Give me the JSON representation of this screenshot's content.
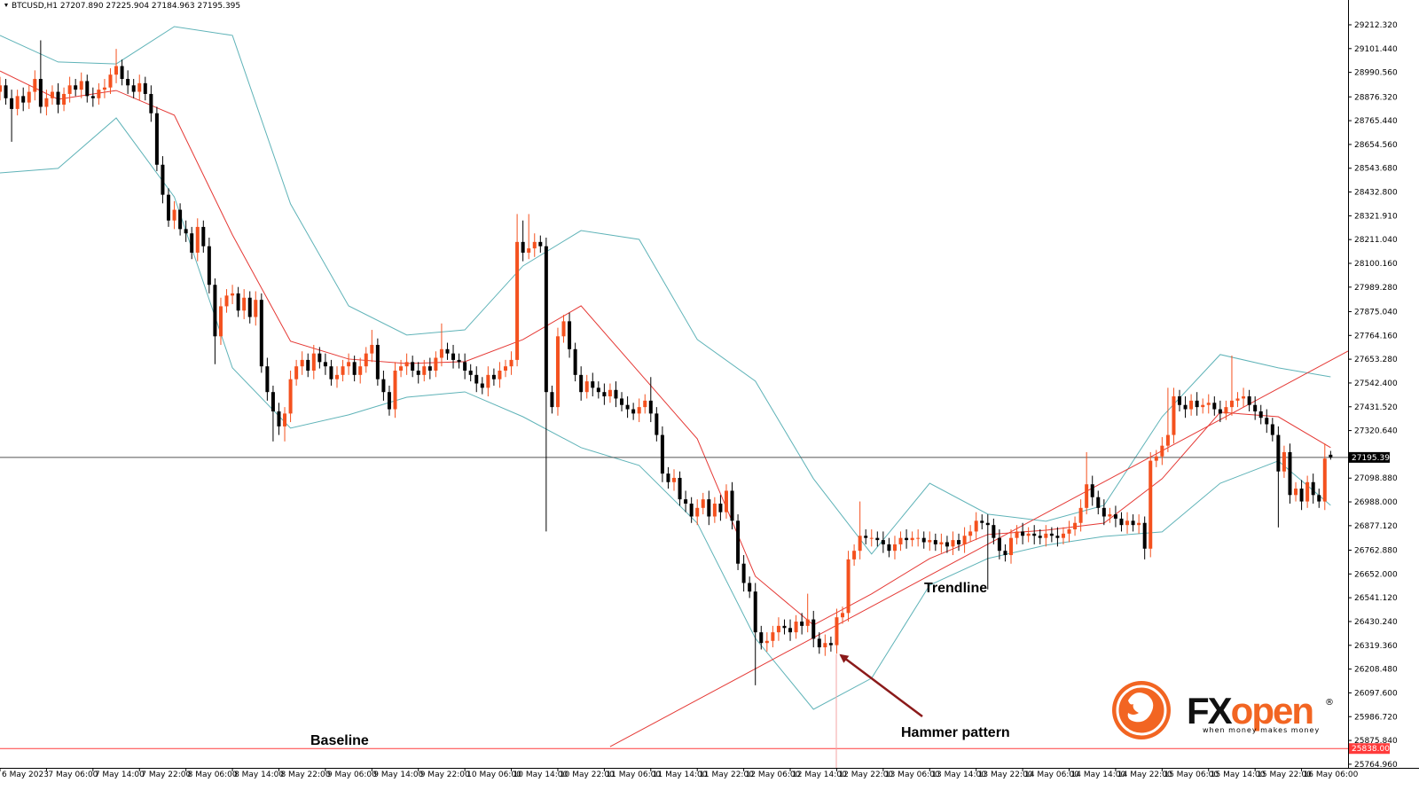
{
  "chart_data": {
    "type": "candlestick",
    "header": "BTCUSD,H1  27207.890 27225.904 27184.963 27195.395",
    "up_color": "#f4511e",
    "down_color": "#000000",
    "xlim": [
      0,
      232
    ],
    "xticks": [
      {
        "value": 0,
        "label": "6 May 2023"
      },
      {
        "value": 8,
        "label": "7 May 06:00"
      },
      {
        "value": 16,
        "label": "7 May 14:00"
      },
      {
        "value": 24,
        "label": "7 May 22:00"
      },
      {
        "value": 32,
        "label": "8 May 06:00"
      },
      {
        "value": 40,
        "label": "8 May 14:00"
      },
      {
        "value": 48,
        "label": "8 May 22:00"
      },
      {
        "value": 56,
        "label": "9 May 06:00"
      },
      {
        "value": 64,
        "label": "9 May 14:00"
      },
      {
        "value": 72,
        "label": "9 May 22:00"
      },
      {
        "value": 80,
        "label": "10 May 06:00"
      },
      {
        "value": 88,
        "label": "10 May 14:00"
      },
      {
        "value": 96,
        "label": "10 May 22:00"
      },
      {
        "value": 104,
        "label": "11 May 06:00"
      },
      {
        "value": 112,
        "label": "11 May 14:00"
      },
      {
        "value": 120,
        "label": "11 May 22:00"
      },
      {
        "value": 128,
        "label": "12 May 06:00"
      },
      {
        "value": 136,
        "label": "12 May 14:00"
      },
      {
        "value": 144,
        "label": "12 May 22:00"
      },
      {
        "value": 152,
        "label": "13 May 06:00"
      },
      {
        "value": 160,
        "label": "13 May 14:00"
      },
      {
        "value": 168,
        "label": "13 May 22:00"
      },
      {
        "value": 176,
        "label": "14 May 06:00"
      },
      {
        "value": 184,
        "label": "14 May 14:00"
      },
      {
        "value": 192,
        "label": "14 May 22:00"
      },
      {
        "value": 200,
        "label": "15 May 06:00"
      },
      {
        "value": 208,
        "label": "15 May 14:00"
      },
      {
        "value": 216,
        "label": "15 May 22:00"
      },
      {
        "value": 224,
        "label": "16 May 06:00"
      }
    ],
    "ylim": [
      25748,
      29328
    ],
    "yticks": [
      {
        "value": 29212.32,
        "label": "29212.320"
      },
      {
        "value": 29101.44,
        "label": "29101.440"
      },
      {
        "value": 28990.56,
        "label": "28990.560"
      },
      {
        "value": 28876.32,
        "label": "28876.320"
      },
      {
        "value": 28765.44,
        "label": "28765.440"
      },
      {
        "value": 28654.56,
        "label": "28654.560"
      },
      {
        "value": 28543.68,
        "label": "28543.680"
      },
      {
        "value": 28432.8,
        "label": "28432.800"
      },
      {
        "value": 28321.91,
        "label": "28321.910"
      },
      {
        "value": 28211.04,
        "label": "28211.040"
      },
      {
        "value": 28100.16,
        "label": "28100.160"
      },
      {
        "value": 27989.28,
        "label": "27989.280"
      },
      {
        "value": 27875.04,
        "label": "27875.040"
      },
      {
        "value": 27764.16,
        "label": "27764.160"
      },
      {
        "value": 27653.28,
        "label": "27653.280"
      },
      {
        "value": 27542.4,
        "label": "27542.400"
      },
      {
        "value": 27431.52,
        "label": "27431.520"
      },
      {
        "value": 27320.64,
        "label": "27320.640"
      },
      {
        "value": 27098.88,
        "label": "27098.880"
      },
      {
        "value": 26988,
        "label": "26988.000"
      },
      {
        "value": 26877.12,
        "label": "26877.120"
      },
      {
        "value": 26762.88,
        "label": "26762.880"
      },
      {
        "value": 26652,
        "label": "26652.000"
      },
      {
        "value": 26541.12,
        "label": "26541.120"
      },
      {
        "value": 26430.24,
        "label": "26430.240"
      },
      {
        "value": 26319.36,
        "label": "26319.360"
      },
      {
        "value": 26208.48,
        "label": "26208.480"
      },
      {
        "value": 26097.6,
        "label": "26097.600"
      },
      {
        "value": 25986.72,
        "label": "25986.720"
      },
      {
        "value": 25875.84,
        "label": "25875.840"
      },
      {
        "value": 25764.96,
        "label": "25764.960"
      }
    ],
    "open": [
      28900,
      28930,
      28870,
      28820,
      28880,
      28850,
      28900,
      28960,
      28830,
      28870,
      28900,
      28840,
      28890,
      28930,
      28910,
      28950,
      28880,
      28870,
      28910,
      28920,
      28980,
      29020,
      28960,
      28930,
      28900,
      28940,
      28890,
      28800,
      28560,
      28420,
      28300,
      28350,
      28260,
      28240,
      28150,
      28270,
      28180,
      28000,
      27760,
      27900,
      27950,
      27960,
      27880,
      27940,
      27850,
      27930,
      27620,
      27500,
      27410,
      27340,
      27400,
      27560,
      27620,
      27650,
      27600,
      27680,
      27640,
      27620,
      27560,
      27580,
      27620,
      27640,
      27580,
      27620,
      27680,
      27720,
      27560,
      27500,
      27420,
      27600,
      27620,
      27640,
      27600,
      27580,
      27620,
      27600,
      27660,
      27700,
      27680,
      27650,
      27640,
      27600,
      27580,
      27540,
      27520,
      27580,
      27560,
      27600,
      27620,
      27650,
      28200,
      28150,
      28170,
      28200,
      28180,
      27500,
      27430,
      27760,
      27830,
      27700,
      27580,
      27500,
      27550,
      27520,
      27500,
      27480,
      27510,
      27470,
      27440,
      27420,
      27400,
      27430,
      27460,
      27400,
      27300,
      27120,
      27080,
      27100,
      27000,
      26980,
      26920,
      26960,
      27000,
      26920,
      26980,
      26940,
      27040,
      26900,
      26700,
      26610,
      26570,
      26380,
      26330,
      26340,
      26380,
      26410,
      26400,
      26380,
      26430,
      26410,
      26440,
      26350,
      26310,
      26330,
      26320,
      26450,
      26470,
      26720,
      26760,
      26830,
      26820,
      26820,
      26810,
      26790,
      26760,
      26790,
      26820,
      26810,
      26820,
      26820,
      26800,
      26810,
      26790,
      26800,
      26780,
      26810,
      26790,
      26830,
      26850,
      26900,
      26890,
      26880,
      26820,
      26760,
      26740,
      26820,
      26850,
      26830,
      26840,
      26830,
      26820,
      26840,
      26830,
      26820,
      26840,
      26860,
      26890,
      26960,
      27070,
      27010,
      26960,
      26920,
      26930,
      26910,
      26880,
      26900,
      26880,
      26890,
      26770,
      27180,
      27200,
      27250,
      27300,
      27480,
      27440,
      27420,
      27460,
      27430,
      27440,
      27450,
      27420,
      27400,
      27430,
      27460,
      27470,
      27480,
      27440,
      27410,
      27380,
      27350,
      27300,
      27130,
      27220,
      27020,
      27050,
      26990,
      27080,
      27020,
      26990,
      27207.89
    ],
    "high": [
      28970,
      28960,
      28910,
      28910,
      28920,
      28930,
      29000,
      29140,
      28910,
      28930,
      28940,
      28920,
      28970,
      28960,
      28990,
      28980,
      28920,
      28940,
      28960,
      29010,
      29100,
      29050,
      29000,
      28960,
      28980,
      28970,
      28930,
      28830,
      28600,
      28450,
      28390,
      28380,
      28300,
      28270,
      28310,
      28300,
      28220,
      28030,
      27940,
      27980,
      28000,
      27990,
      27980,
      27970,
      27970,
      27960,
      27660,
      27530,
      27450,
      27430,
      27600,
      27650,
      27690,
      27680,
      27720,
      27710,
      27680,
      27650,
      27620,
      27650,
      27680,
      27670,
      27660,
      27710,
      27790,
      27750,
      27600,
      27530,
      27640,
      27650,
      27680,
      27670,
      27640,
      27650,
      27660,
      27690,
      27820,
      27730,
      27720,
      27680,
      27680,
      27630,
      27620,
      27570,
      27620,
      27610,
      27640,
      27650,
      27690,
      28330,
      28300,
      28330,
      28240,
      28230,
      28220,
      27530,
      27800,
      27860,
      27870,
      27730,
      27620,
      27580,
      27590,
      27550,
      27540,
      27540,
      27550,
      27500,
      27480,
      27450,
      27470,
      27490,
      27570,
      27430,
      27340,
      27150,
      27140,
      27130,
      27040,
      27010,
      27000,
      27030,
      27040,
      27010,
      27020,
      27070,
      27080,
      26930,
      26740,
      26640,
      26610,
      26410,
      26380,
      26410,
      26450,
      26440,
      26440,
      26460,
      26470,
      26560,
      26480,
      26380,
      26370,
      26360,
      26490,
      26500,
      26760,
      26790,
      26990,
      26860,
      26860,
      26850,
      26850,
      26820,
      26830,
      26850,
      26860,
      26850,
      26860,
      26850,
      26850,
      26840,
      26840,
      26830,
      26850,
      26840,
      26870,
      26880,
      26940,
      26930,
      26930,
      26910,
      26860,
      26790,
      26860,
      26880,
      26890,
      26870,
      26880,
      26860,
      26880,
      26870,
      26870,
      26870,
      26900,
      26920,
      27000,
      27220,
      27110,
      27040,
      27000,
      26960,
      26970,
      26940,
      26940,
      26930,
      26930,
      26920,
      27220,
      27230,
      27290,
      27520,
      27520,
      27510,
      27480,
      27490,
      27500,
      27470,
      27490,
      27480,
      27460,
      27460,
      27670,
      27500,
      27520,
      27510,
      27480,
      27440,
      27420,
      27380,
      27340,
      27250,
      27260,
      27080,
      27090,
      27110,
      27120,
      27050,
      27260,
      27225.904
    ],
    "low": [
      28860,
      28840,
      28667,
      28790,
      28810,
      28820,
      28860,
      28800,
      28790,
      28840,
      28800,
      28810,
      28850,
      28880,
      28870,
      28850,
      28830,
      28840,
      28870,
      28890,
      28940,
      28930,
      28890,
      28870,
      28860,
      28860,
      28760,
      28530,
      28380,
      28270,
      28260,
      28230,
      28200,
      28120,
      28110,
      28150,
      27960,
      27630,
      27720,
      27870,
      27910,
      27850,
      27840,
      27820,
      27810,
      27590,
      27460,
      27270,
      27300,
      27270,
      27360,
      27530,
      27580,
      27570,
      27560,
      27610,
      27580,
      27530,
      27520,
      27550,
      27580,
      27550,
      27540,
      27590,
      27640,
      27530,
      27460,
      27390,
      27380,
      27570,
      27580,
      27570,
      27540,
      27550,
      27560,
      27570,
      27620,
      27650,
      27610,
      27610,
      27560,
      27550,
      27500,
      27490,
      27480,
      27530,
      27520,
      27570,
      27580,
      27620,
      28110,
      28120,
      28130,
      28150,
      26850,
      27400,
      27390,
      27730,
      27660,
      27550,
      27460,
      27470,
      27480,
      27470,
      27440,
      27450,
      27430,
      27410,
      27380,
      27370,
      27360,
      27400,
      27360,
      27270,
      27080,
      27050,
      27040,
      26970,
      26940,
      26890,
      26880,
      26930,
      26880,
      26890,
      26900,
      26910,
      26860,
      26670,
      26570,
      26540,
      26133,
      26300,
      26290,
      26310,
      26340,
      26370,
      26340,
      26350,
      26370,
      26380,
      26310,
      26280,
      26270,
      26290,
      26280,
      26420,
      26430,
      26690,
      26720,
      26790,
      26780,
      26780,
      26750,
      26730,
      26720,
      26760,
      26770,
      26780,
      26780,
      26770,
      26760,
      26760,
      26750,
      26750,
      26740,
      26760,
      26750,
      26800,
      26810,
      26860,
      26580,
      26790,
      26720,
      26710,
      26700,
      26790,
      26790,
      26800,
      26790,
      26790,
      26780,
      26800,
      26780,
      26790,
      26800,
      26830,
      26850,
      26930,
      26970,
      26930,
      26880,
      26890,
      26870,
      26850,
      26840,
      26850,
      26840,
      26720,
      26730,
      27150,
      27160,
      27220,
      27260,
      27410,
      27380,
      27390,
      27390,
      27400,
      27400,
      27390,
      27360,
      27370,
      27390,
      27430,
      27430,
      27410,
      27370,
      27350,
      27310,
      27270,
      26869,
      27100,
      26980,
      26990,
      26950,
      26960,
      26980,
      26960,
      26950,
      27184.963
    ],
    "close": [
      28930,
      28870,
      28820,
      28880,
      28850,
      28900,
      28960,
      28830,
      28870,
      28900,
      28840,
      28890,
      28930,
      28910,
      28950,
      28880,
      28870,
      28910,
      28920,
      28980,
      29020,
      28960,
      28930,
      28900,
      28940,
      28890,
      28800,
      28560,
      28420,
      28300,
      28350,
      28260,
      28240,
      28150,
      28270,
      28180,
      28000,
      27760,
      27900,
      27950,
      27960,
      27880,
      27940,
      27850,
      27930,
      27620,
      27500,
      27410,
      27340,
      27400,
      27560,
      27620,
      27650,
      27600,
      27680,
      27640,
      27620,
      27560,
      27580,
      27620,
      27640,
      27580,
      27620,
      27680,
      27720,
      27560,
      27500,
      27420,
      27600,
      27620,
      27640,
      27600,
      27580,
      27620,
      27600,
      27660,
      27700,
      27680,
      27650,
      27640,
      27600,
      27580,
      27540,
      27520,
      27580,
      27560,
      27600,
      27620,
      27650,
      28200,
      28150,
      28170,
      28200,
      28180,
      27500,
      27430,
      27760,
      27830,
      27700,
      27580,
      27500,
      27550,
      27520,
      27500,
      27480,
      27510,
      27470,
      27440,
      27420,
      27400,
      27430,
      27460,
      27400,
      27300,
      27120,
      27080,
      27100,
      27000,
      26980,
      26920,
      26960,
      27000,
      26920,
      26980,
      26940,
      27040,
      26900,
      26700,
      26610,
      26570,
      26380,
      26330,
      26340,
      26380,
      26410,
      26400,
      26380,
      26430,
      26410,
      26440,
      26350,
      26310,
      26330,
      26320,
      26450,
      26470,
      26720,
      26760,
      26830,
      26820,
      26820,
      26810,
      26790,
      26760,
      26790,
      26820,
      26810,
      26820,
      26820,
      26800,
      26810,
      26790,
      26800,
      26780,
      26810,
      26790,
      26830,
      26850,
      26900,
      26890,
      26880,
      26820,
      26760,
      26740,
      26820,
      26850,
      26830,
      26840,
      26830,
      26820,
      26840,
      26830,
      26820,
      26840,
      26860,
      26890,
      26960,
      27070,
      27010,
      26960,
      26920,
      26930,
      26910,
      26880,
      26900,
      26880,
      26890,
      26770,
      27180,
      27200,
      27250,
      27300,
      27480,
      27440,
      27420,
      27460,
      27430,
      27440,
      27450,
      27420,
      27400,
      27430,
      27460,
      27470,
      27480,
      27440,
      27410,
      27380,
      27350,
      27300,
      27130,
      27220,
      27020,
      27050,
      26990,
      27080,
      27020,
      26990,
      27190,
      27195.395
    ],
    "bands": {
      "x": [
        0,
        10,
        20,
        30,
        40,
        50,
        60,
        70,
        80,
        90,
        100,
        110,
        120,
        130,
        140,
        150,
        160,
        170,
        180,
        190,
        200,
        210,
        220,
        229
      ],
      "series": [
        {
          "color": "#5fb3b8",
          "values": [
            29163,
            29039,
            29030,
            29204,
            29163,
            28377,
            27902,
            27766,
            27790,
            28088,
            28253,
            28212,
            27745,
            27551,
            27096,
            26745,
            27075,
            26931,
            26898,
            26972,
            27385,
            27675,
            27613,
            27571
          ]
        },
        {
          "color": "#e53935",
          "values": [
            28997,
            28865,
            28906,
            28791,
            28233,
            27737,
            27654,
            27633,
            27642,
            27745,
            27902,
            27592,
            27282,
            26641,
            26414,
            26559,
            26724,
            26836,
            26856,
            26889,
            27096,
            27406,
            27385,
            27241
          ]
        },
        {
          "color": "#5fb3b8",
          "values": [
            28522,
            28543,
            28778,
            28410,
            27613,
            27332,
            27394,
            27476,
            27501,
            27385,
            27241,
            27158,
            26889,
            26352,
            26021,
            26166,
            26600,
            26724,
            26786,
            26827,
            26848,
            27075,
            27179,
            26972
          ]
        }
      ]
    },
    "trendline": {
      "color": "#e53935",
      "x": [
        105,
        232
      ],
      "values": [
        25847,
        27691
      ]
    },
    "last_price": 27195.395,
    "baseline": {
      "value": 25838.007,
      "color": "#ff3b3b"
    },
    "annotations": {
      "trendline": "Trendline",
      "hammer": "Hammer pattern",
      "baseline": "Baseline"
    },
    "logo": {
      "name_a": "FX",
      "name_b": "open",
      "mark": "®",
      "tagline": "when money makes money"
    }
  }
}
